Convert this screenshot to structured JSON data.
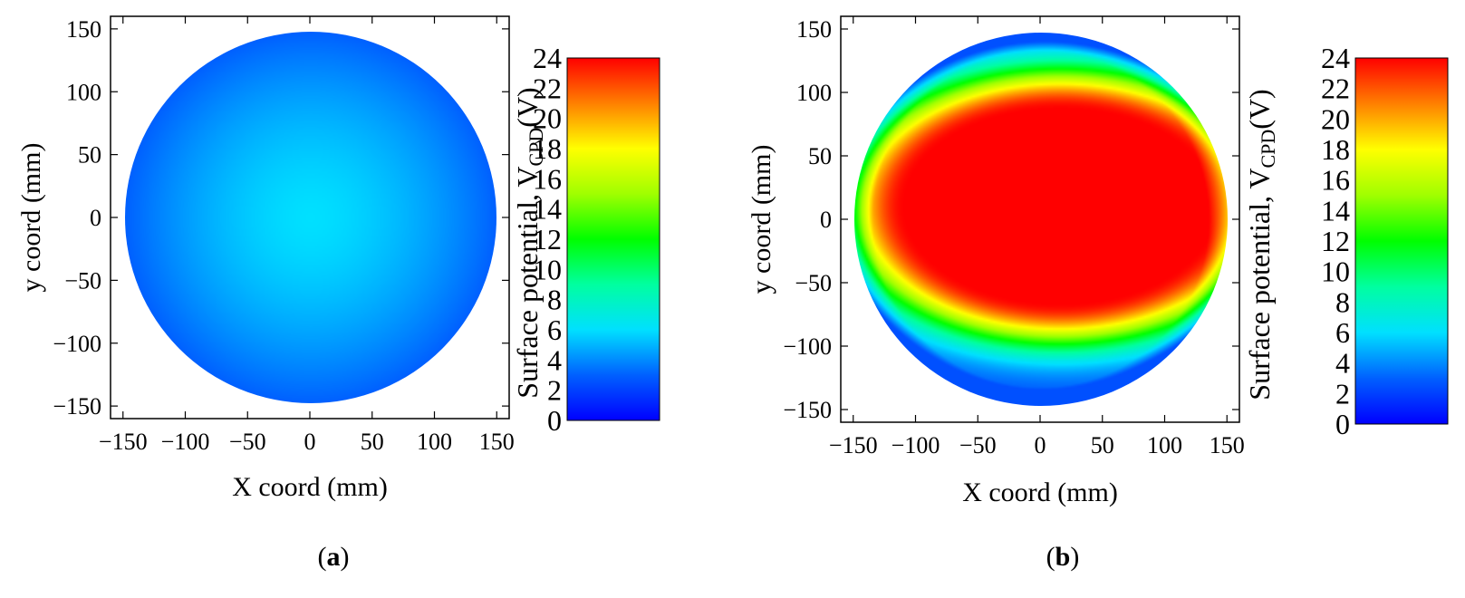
{
  "chart_data": [
    {
      "type": "heatmap",
      "panel_label": "a",
      "xlabel": "X coord (mm)",
      "ylabel": "y coord (mm)",
      "xlim": [
        -160,
        160
      ],
      "ylim": [
        -160,
        160
      ],
      "xticks": [
        -150,
        -100,
        -50,
        0,
        50,
        100,
        150
      ],
      "yticks": [
        -150,
        -100,
        -50,
        0,
        50,
        100,
        150
      ],
      "wafer_radius": 145,
      "colorbar": {
        "label_main": "Surface potential, V",
        "label_sub": "CPD",
        "label_unit": "(V)",
        "range": [
          0,
          24
        ],
        "ticks": [
          0,
          2,
          4,
          6,
          8,
          10,
          12,
          14,
          16,
          18,
          20,
          22,
          24
        ],
        "colors": [
          "#0000ff",
          "#0080ff",
          "#00ffff",
          "#00ff80",
          "#00ff00",
          "#ffff00",
          "#ff8000",
          "#ff0000"
        ]
      },
      "field": {
        "center_value": 6.0,
        "edge_value": 3.0,
        "hot_spot": null
      }
    },
    {
      "type": "heatmap",
      "panel_label": "b",
      "xlabel": "X coord (mm)",
      "ylabel": "y coord (mm)",
      "xlim": [
        -160,
        160
      ],
      "ylim": [
        -160,
        160
      ],
      "xticks": [
        -150,
        -100,
        -50,
        0,
        50,
        100,
        150
      ],
      "yticks": [
        -150,
        -100,
        -50,
        0,
        50,
        100,
        150
      ],
      "wafer_radius": 145,
      "colorbar": {
        "label_main": "Surface potential, V",
        "label_sub": "CPD",
        "label_unit": "(V)",
        "range": [
          0,
          24
        ],
        "ticks": [
          0,
          2,
          4,
          6,
          8,
          10,
          12,
          14,
          16,
          18,
          20,
          22,
          24
        ],
        "colors": [
          "#0000ff",
          "#0080ff",
          "#00ffff",
          "#00ff80",
          "#00ff00",
          "#ffff00",
          "#ff8000",
          "#ff0000"
        ]
      },
      "field": {
        "center_value": 24,
        "edge_value": 2.5,
        "hot_spot": {
          "x": 15,
          "y": 10,
          "rx": 120,
          "ry": 75
        }
      }
    }
  ],
  "captions": [
    "a",
    "b"
  ]
}
